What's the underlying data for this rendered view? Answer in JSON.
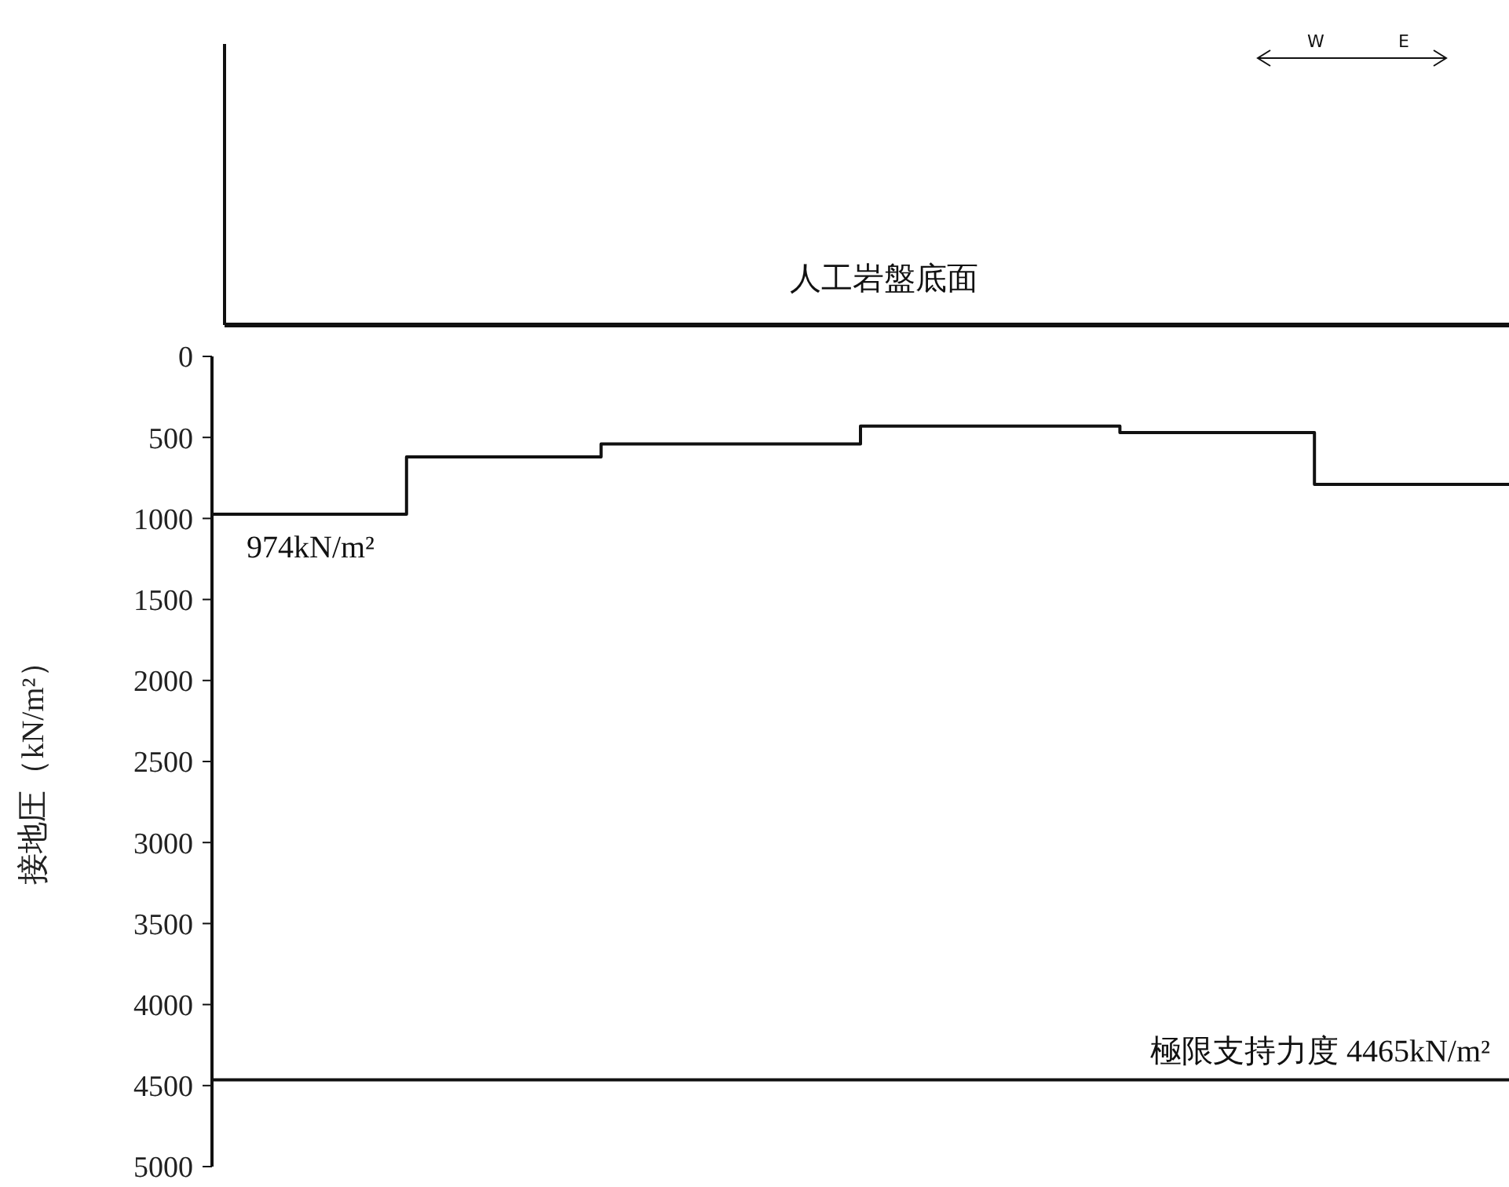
{
  "chart_data": {
    "type": "step",
    "ylabel": "接地圧（kN/m²）",
    "categories": [
      null,
      null,
      null,
      null,
      null,
      null,
      null,
      null,
      null,
      null,
      null,
      null,
      null,
      null,
      null,
      null,
      null,
      null,
      null,
      null,
      null
    ],
    "series": [
      {
        "color": "#111111",
        "values": [
          974,
          974,
          974,
          620,
          620,
          620,
          540,
          540,
          540,
          540,
          430,
          430,
          430,
          430,
          470,
          470,
          470,
          790,
          790,
          790,
          790
        ]
      }
    ],
    "ylim": [
      5000,
      0
    ],
    "yticks": [
      0,
      500,
      1000,
      1500,
      2000,
      2500,
      3000,
      3500,
      4000,
      4500,
      5000
    ],
    "tick_labels": "y",
    "grid": false,
    "legend": false,
    "marker": "none",
    "line_style": "solid",
    "ref_lines": [
      {
        "axis": "y",
        "value": 4465,
        "label": "極限支持力度 4465kN/m²",
        "color": "#111111"
      }
    ],
    "annotations": [
      "人工岩盤底面",
      "W",
      "E",
      {
        "text": "974kN/m²",
        "y": 974
      }
    ]
  }
}
